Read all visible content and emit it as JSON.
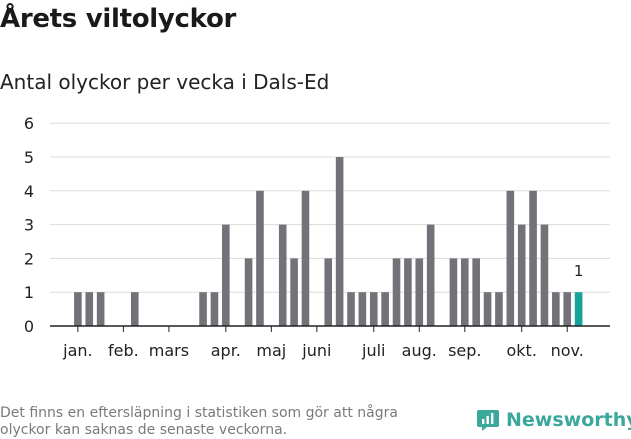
{
  "header": {
    "title": "Årets viltolyckor",
    "subtitle": "Antal olyckor per vecka i Dals-Ed"
  },
  "footer": {
    "note": "Det finns en eftersläpning i statistiken som gör att några olyckor kan saknas de senaste veckorna.",
    "brand": "Newsworthy"
  },
  "colors": {
    "bar": "#737278",
    "highlight": "#12a39a",
    "grid": "#dcdcdc",
    "axis": "#222222",
    "brand": "#3aa89b"
  },
  "chart_data": {
    "type": "bar",
    "title": "Antal olyckor per vecka i Dals-Ed",
    "xlabel": "",
    "ylabel": "",
    "ylim": [
      0,
      6
    ],
    "yticks": [
      0,
      1,
      2,
      3,
      4,
      5,
      6
    ],
    "x_month_labels": [
      {
        "label": "jan.",
        "week": 2
      },
      {
        "label": "feb.",
        "week": 6
      },
      {
        "label": "mars",
        "week": 10
      },
      {
        "label": "apr.",
        "week": 15
      },
      {
        "label": "maj",
        "week": 19
      },
      {
        "label": "juni",
        "week": 23
      },
      {
        "label": "juli",
        "week": 28
      },
      {
        "label": "aug.",
        "week": 32
      },
      {
        "label": "sep.",
        "week": 36
      },
      {
        "label": "okt.",
        "week": 41
      },
      {
        "label": "nov.",
        "week": 45
      }
    ],
    "weeks": [
      1,
      2,
      3,
      4,
      5,
      6,
      7,
      8,
      9,
      10,
      11,
      12,
      13,
      14,
      15,
      16,
      17,
      18,
      19,
      20,
      21,
      22,
      23,
      24,
      25,
      26,
      27,
      28,
      29,
      30,
      31,
      32,
      33,
      34,
      35,
      36,
      37,
      38,
      39,
      40,
      41,
      42,
      43,
      44,
      45,
      46
    ],
    "values": [
      0,
      1,
      1,
      1,
      0,
      0,
      1,
      0,
      0,
      0,
      0,
      0,
      1,
      1,
      3,
      0,
      2,
      4,
      0,
      3,
      2,
      4,
      0,
      2,
      5,
      1,
      1,
      1,
      1,
      2,
      2,
      2,
      3,
      0,
      2,
      2,
      2,
      1,
      1,
      4,
      3,
      4,
      3,
      1,
      1,
      1
    ],
    "highlight_last": true,
    "last_value_label": "1",
    "grid": true
  }
}
